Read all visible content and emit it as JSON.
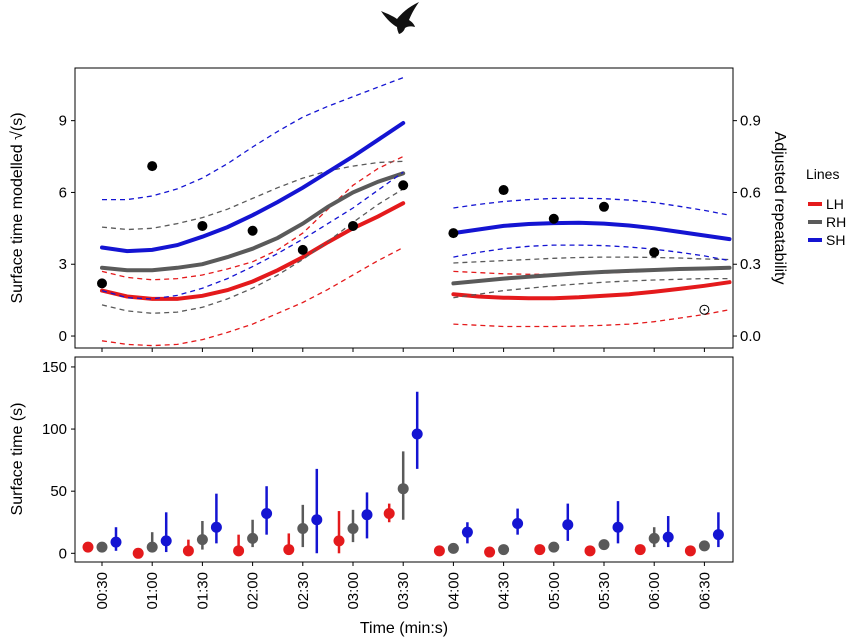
{
  "chart_data": [
    {
      "type": "line",
      "ylabel": "Surface time modelled √(s)",
      "y2label": "Adjusted repeatability",
      "ylim": [
        -0.5,
        11.2
      ],
      "y2lim": [
        -0.05,
        1.12
      ],
      "yticks": [
        0,
        3,
        6,
        9
      ],
      "y2ticks": [
        "0.0",
        "0.3",
        "0.6",
        "0.9"
      ],
      "grid": false,
      "legend": {
        "title": "Lines",
        "position": "right",
        "entries": [
          {
            "label": "LH",
            "color": "#e41a1c"
          },
          {
            "label": "RH",
            "color": "#5a5a5a"
          },
          {
            "label": "SH",
            "color": "#1414d2"
          }
        ]
      },
      "segments": [
        {
          "x": [
            "00:30",
            "00:45",
            "01:00",
            "01:15",
            "01:30",
            "01:45",
            "02:00",
            "02:15",
            "02:30",
            "02:45",
            "03:00",
            "03:15",
            "03:30"
          ],
          "series": [
            {
              "name": "LH",
              "color": "#e41a1c",
              "fit": [
                1.9,
                1.65,
                1.55,
                1.55,
                1.68,
                1.92,
                2.28,
                2.75,
                3.3,
                3.92,
                4.5,
                5.0,
                5.55
              ],
              "lower": [
                -0.2,
                -0.35,
                -0.4,
                -0.35,
                -0.15,
                0.15,
                0.5,
                0.95,
                1.4,
                1.95,
                2.55,
                3.15,
                3.7
              ],
              "upper": [
                2.7,
                2.45,
                2.35,
                2.4,
                2.55,
                2.8,
                3.1,
                3.6,
                4.3,
                5.3,
                6.3,
                7.0,
                7.5
              ]
            },
            {
              "name": "RH",
              "color": "#5a5a5a",
              "fit": [
                2.85,
                2.75,
                2.75,
                2.85,
                3.0,
                3.3,
                3.65,
                4.1,
                4.7,
                5.4,
                6.0,
                6.45,
                6.8
              ],
              "lower": [
                1.3,
                1.05,
                0.95,
                1.0,
                1.2,
                1.55,
                2.0,
                2.55,
                3.2,
                3.95,
                4.75,
                5.5,
                6.15
              ],
              "upper": [
                4.55,
                4.45,
                4.5,
                4.7,
                4.95,
                5.3,
                5.75,
                6.2,
                6.6,
                6.9,
                7.1,
                7.25,
                7.3
              ]
            },
            {
              "name": "SH",
              "color": "#1414d2",
              "fit": [
                3.7,
                3.55,
                3.6,
                3.8,
                4.15,
                4.55,
                5.05,
                5.6,
                6.2,
                6.85,
                7.5,
                8.2,
                8.9
              ],
              "lower": [
                1.9,
                1.6,
                1.55,
                1.7,
                2.0,
                2.4,
                2.9,
                3.45,
                4.05,
                4.7,
                5.35,
                6.1,
                6.85
              ],
              "upper": [
                5.7,
                5.7,
                5.85,
                6.15,
                6.6,
                7.2,
                7.9,
                8.55,
                9.15,
                9.6,
                10.0,
                10.4,
                10.8
              ]
            }
          ]
        },
        {
          "x": [
            "04:00",
            "04:15",
            "04:30",
            "04:45",
            "05:00",
            "05:15",
            "05:30",
            "05:45",
            "06:00",
            "06:15",
            "06:30",
            "06:45"
          ],
          "series": [
            {
              "name": "LH",
              "color": "#e41a1c",
              "fit": [
                1.75,
                1.65,
                1.6,
                1.58,
                1.58,
                1.62,
                1.68,
                1.75,
                1.85,
                1.97,
                2.1,
                2.25
              ],
              "lower": [
                0.5,
                0.45,
                0.4,
                0.4,
                0.4,
                0.42,
                0.45,
                0.5,
                0.6,
                0.75,
                0.9,
                1.1
              ],
              "upper": [
                2.7,
                2.65,
                2.6,
                2.58,
                2.58,
                2.6,
                2.63,
                2.67,
                2.72,
                2.78,
                2.85,
                2.9
              ]
            },
            {
              "name": "RH",
              "color": "#5a5a5a",
              "fit": [
                2.2,
                2.3,
                2.4,
                2.48,
                2.55,
                2.62,
                2.68,
                2.72,
                2.76,
                2.8,
                2.82,
                2.85
              ],
              "lower": [
                1.6,
                1.75,
                1.9,
                2.0,
                2.1,
                2.18,
                2.25,
                2.3,
                2.34,
                2.37,
                2.4,
                2.4
              ],
              "upper": [
                3.05,
                3.1,
                3.15,
                3.2,
                3.25,
                3.28,
                3.3,
                3.3,
                3.28,
                3.26,
                3.22,
                3.2
              ]
            },
            {
              "name": "SH",
              "color": "#1414d2",
              "fit": [
                4.3,
                4.45,
                4.6,
                4.68,
                4.72,
                4.73,
                4.7,
                4.62,
                4.5,
                4.35,
                4.2,
                4.05
              ],
              "lower": [
                3.3,
                3.5,
                3.65,
                3.75,
                3.8,
                3.8,
                3.78,
                3.72,
                3.63,
                3.5,
                3.35,
                3.15
              ],
              "upper": [
                5.35,
                5.5,
                5.62,
                5.7,
                5.75,
                5.76,
                5.74,
                5.68,
                5.58,
                5.42,
                5.25,
                5.05
              ]
            }
          ]
        }
      ],
      "repeatability_points": [
        {
          "x": "00:30",
          "y": 0.22
        },
        {
          "x": "01:00",
          "y": 0.71
        },
        {
          "x": "01:30",
          "y": 0.46
        },
        {
          "x": "02:00",
          "y": 0.44
        },
        {
          "x": "02:30",
          "y": 0.36
        },
        {
          "x": "03:00",
          "y": 0.46
        },
        {
          "x": "03:30",
          "y": 0.63
        },
        {
          "x": "04:00",
          "y": 0.43
        },
        {
          "x": "04:30",
          "y": 0.61
        },
        {
          "x": "05:00",
          "y": 0.49
        },
        {
          "x": "05:30",
          "y": 0.54
        },
        {
          "x": "06:00",
          "y": 0.35
        },
        {
          "x": "06:30",
          "y": 0.11,
          "open": true
        }
      ]
    },
    {
      "type": "scatter",
      "xlabel": "Time (min:s)",
      "ylabel": "Surface time (s)",
      "ylim": [
        -7,
        158
      ],
      "yticks": [
        0,
        50,
        100,
        150
      ],
      "categories": [
        "00:30",
        "01:00",
        "01:30",
        "02:00",
        "02:30",
        "03:00",
        "03:30",
        "04:00",
        "04:30",
        "05:00",
        "05:30",
        "06:00",
        "06:30"
      ],
      "series": [
        {
          "name": "LH",
          "color": "#e41a1c",
          "values": [
            5,
            0,
            2,
            2,
            3,
            10,
            32,
            2,
            1,
            3,
            2,
            3,
            2
          ],
          "lower": [
            4,
            0,
            0,
            0,
            0,
            0,
            25,
            1,
            0,
            2,
            1,
            2,
            1
          ],
          "upper": [
            7,
            2,
            11,
            15,
            16,
            34,
            40,
            4,
            3,
            5,
            4,
            5,
            4
          ]
        },
        {
          "name": "RH",
          "color": "#5a5a5a",
          "values": [
            5,
            5,
            11,
            12,
            20,
            20,
            52,
            4,
            3,
            5,
            7,
            12,
            6
          ],
          "lower": [
            2,
            2,
            3,
            5,
            5,
            9,
            27,
            2,
            1,
            3,
            4,
            5,
            3
          ],
          "upper": [
            9,
            17,
            26,
            27,
            39,
            35,
            82,
            6,
            7,
            7,
            10,
            21,
            9
          ]
        },
        {
          "name": "SH",
          "color": "#1414d2",
          "values": [
            9,
            10,
            21,
            32,
            27,
            31,
            96,
            17,
            24,
            23,
            21,
            13,
            15
          ],
          "lower": [
            2,
            1,
            8,
            15,
            0,
            12,
            68,
            8,
            15,
            10,
            8,
            5,
            5
          ],
          "upper": [
            21,
            33,
            48,
            54,
            68,
            49,
            130,
            25,
            36,
            40,
            42,
            30,
            33
          ]
        }
      ]
    }
  ]
}
